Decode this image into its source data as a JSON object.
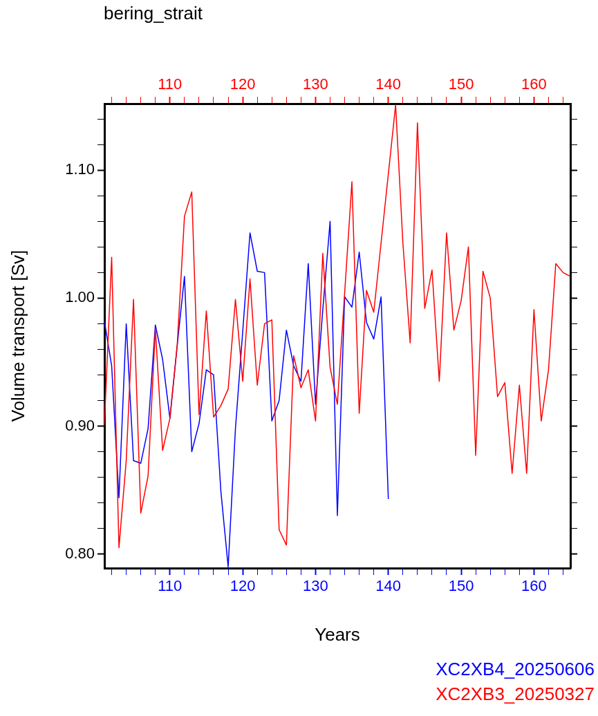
{
  "chart_data": {
    "type": "line",
    "title": "bering_strait",
    "xlabel": "Years",
    "ylabel": "Volume transport [Sv]",
    "xlim": [
      101,
      165
    ],
    "ylim": [
      0.789,
      1.152
    ],
    "x2lim": [
      101,
      165
    ],
    "xticks": [
      {
        "value": 102,
        "label": null
      },
      {
        "value": 104,
        "label": null
      },
      {
        "value": 106,
        "label": null
      },
      {
        "value": 108,
        "label": null
      },
      110,
      {
        "value": 112,
        "label": null
      },
      {
        "value": 114,
        "label": null
      },
      {
        "value": 116,
        "label": null
      },
      {
        "value": 118,
        "label": null
      },
      120,
      {
        "value": 122,
        "label": null
      },
      {
        "value": 124,
        "label": null
      },
      {
        "value": 126,
        "label": null
      },
      {
        "value": 128,
        "label": null
      },
      130,
      {
        "value": 132,
        "label": null
      },
      {
        "value": 134,
        "label": null
      },
      {
        "value": 136,
        "label": null
      },
      {
        "value": 138,
        "label": null
      },
      140,
      {
        "value": 142,
        "label": null
      },
      {
        "value": 144,
        "label": null
      },
      {
        "value": 146,
        "label": null
      },
      {
        "value": 148,
        "label": null
      },
      150,
      {
        "value": 152,
        "label": null
      },
      {
        "value": 154,
        "label": null
      },
      {
        "value": 156,
        "label": null
      },
      {
        "value": 158,
        "label": null
      },
      160,
      {
        "value": 162,
        "label": null
      },
      {
        "value": 164,
        "label": null
      }
    ],
    "x2ticks": [
      {
        "value": 102,
        "label": null
      },
      {
        "value": 104,
        "label": null
      },
      {
        "value": 106,
        "label": null
      },
      {
        "value": 108,
        "label": null
      },
      110,
      {
        "value": 112,
        "label": null
      },
      {
        "value": 114,
        "label": null
      },
      {
        "value": 116,
        "label": null
      },
      {
        "value": 118,
        "label": null
      },
      120,
      {
        "value": 122,
        "label": null
      },
      {
        "value": 124,
        "label": null
      },
      {
        "value": 126,
        "label": null
      },
      {
        "value": 128,
        "label": null
      },
      130,
      {
        "value": 132,
        "label": null
      },
      {
        "value": 134,
        "label": null
      },
      {
        "value": 136,
        "label": null
      },
      {
        "value": 138,
        "label": null
      },
      140,
      {
        "value": 142,
        "label": null
      },
      {
        "value": 144,
        "label": null
      },
      {
        "value": 146,
        "label": null
      },
      {
        "value": 148,
        "label": null
      },
      150,
      {
        "value": 152,
        "label": null
      },
      {
        "value": 154,
        "label": null
      },
      {
        "value": 156,
        "label": null
      },
      {
        "value": 158,
        "label": null
      },
      160,
      {
        "value": 162,
        "label": null
      },
      {
        "value": 164,
        "label": null
      }
    ],
    "yticks": [
      {
        "value": 0.8,
        "label": "0.80"
      },
      {
        "value": 0.82,
        "label": null
      },
      {
        "value": 0.84,
        "label": null
      },
      {
        "value": 0.86,
        "label": null
      },
      {
        "value": 0.88,
        "label": null
      },
      {
        "value": 0.9,
        "label": "0.90"
      },
      {
        "value": 0.92,
        "label": null
      },
      {
        "value": 0.94,
        "label": null
      },
      {
        "value": 0.96,
        "label": null
      },
      {
        "value": 0.98,
        "label": null
      },
      {
        "value": 1.0,
        "label": "1.00"
      },
      {
        "value": 1.02,
        "label": null
      },
      {
        "value": 1.04,
        "label": null
      },
      {
        "value": 1.06,
        "label": null
      },
      {
        "value": 1.08,
        "label": null
      },
      {
        "value": 1.1,
        "label": "1.10"
      },
      {
        "value": 1.12,
        "label": null
      },
      {
        "value": 1.14,
        "label": null
      }
    ],
    "grid": false,
    "legend": "bottom right",
    "marker": "none",
    "line_style": "solid",
    "series": [
      {
        "name": "XC2XB4_20250606",
        "color": "#0000ff",
        "x": [
          101,
          102,
          103,
          104,
          105,
          106,
          107,
          108,
          109,
          110,
          111,
          112,
          113,
          114,
          115,
          116,
          117,
          118,
          119,
          120,
          121,
          122,
          123,
          124,
          125,
          126,
          127,
          128,
          129,
          130,
          131,
          132,
          133,
          134,
          135,
          136,
          137,
          138,
          139,
          140
        ],
        "values": [
          0.982,
          0.947,
          0.844,
          0.98,
          0.873,
          0.871,
          0.898,
          0.979,
          0.952,
          0.906,
          0.963,
          1.017,
          0.88,
          0.902,
          0.944,
          0.94,
          0.849,
          0.79,
          0.898,
          0.974,
          1.051,
          1.021,
          1.02,
          0.904,
          0.92,
          0.975,
          0.947,
          0.935,
          1.027,
          0.917,
          0.991,
          1.06,
          0.83,
          1.001,
          0.993,
          1.036,
          0.981,
          0.968,
          1.001,
          0.843
        ]
      },
      {
        "name": "XC2XB3_20250327",
        "color": "#ff0000",
        "x": [
          101,
          102,
          103,
          104,
          105,
          106,
          107,
          108,
          109,
          110,
          111,
          112,
          113,
          114,
          115,
          116,
          117,
          118,
          119,
          120,
          121,
          122,
          123,
          124,
          125,
          126,
          127,
          128,
          129,
          130,
          131,
          132,
          133,
          134,
          135,
          136,
          137,
          138,
          139,
          140,
          141,
          142,
          143,
          144,
          145,
          146,
          147,
          148,
          149,
          150,
          151,
          152,
          153,
          154,
          155,
          156,
          157,
          158,
          159,
          160,
          161,
          162,
          163,
          164,
          165
        ],
        "values": [
          0.901,
          1.032,
          0.805,
          0.873,
          0.999,
          0.832,
          0.861,
          0.976,
          0.881,
          0.906,
          0.963,
          1.064,
          1.083,
          0.909,
          0.99,
          0.907,
          0.916,
          0.929,
          0.999,
          0.935,
          1.015,
          0.932,
          0.98,
          0.983,
          0.819,
          0.807,
          0.955,
          0.93,
          0.944,
          0.904,
          1.035,
          0.946,
          0.917,
          1.004,
          1.091,
          0.91,
          1.006,
          0.989,
          1.043,
          1.097,
          1.151,
          1.043,
          0.965,
          1.137,
          0.992,
          1.022,
          0.935,
          1.051,
          0.975,
          0.998,
          1.04,
          0.877,
          1.021,
          1.0,
          0.923,
          0.934,
          0.863,
          0.932,
          0.863,
          0.991,
          0.904,
          0.944,
          1.027,
          1.02,
          1.017
        ]
      }
    ]
  }
}
